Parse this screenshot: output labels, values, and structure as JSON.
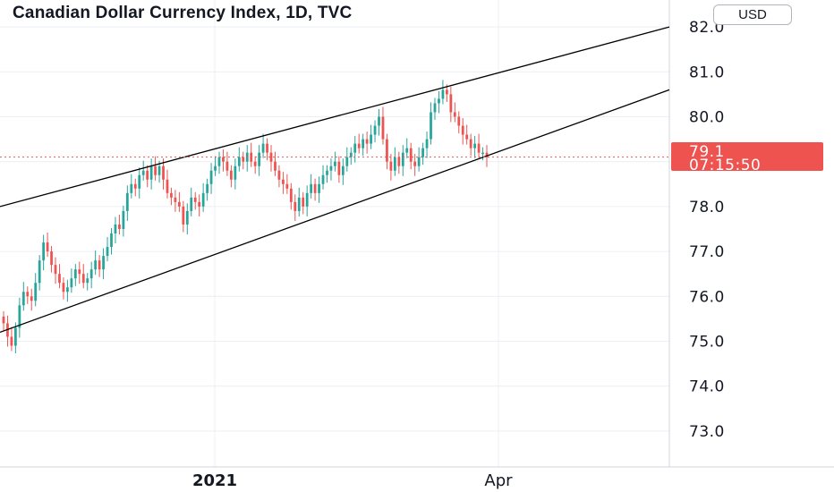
{
  "header": {
    "title": "Canadian Dollar Currency Index, 1D, TVC",
    "currency": "USD"
  },
  "colors": {
    "up": "#26a69a",
    "down": "#ef5350",
    "price_label_bg": "#ef5350",
    "grid": "#eceff3",
    "trendline": "#000000"
  },
  "last_price": {
    "value": "79.1",
    "countdown": "07:15:50"
  },
  "chart_data": {
    "type": "candlestick",
    "title": "Canadian Dollar Currency Index, 1D, TVC",
    "y_ticks": [
      "73.0",
      "74.0",
      "75.0",
      "76.0",
      "77.0",
      "78.0",
      "79.0",
      "80.0",
      "81.0",
      "82.0"
    ],
    "x_ticks": [
      {
        "label": "2021",
        "bold": true
      },
      {
        "label": "Apr",
        "bold": false
      }
    ],
    "ylim": [
      72.2,
      82.6
    ],
    "grid": true,
    "last_price_line": 79.1,
    "close": [
      75.4,
      75.1,
      74.9,
      75.3,
      75.8,
      76.1,
      76.0,
      75.9,
      76.3,
      76.8,
      77.2,
      77.0,
      76.7,
      76.5,
      76.3,
      76.1,
      76.2,
      76.4,
      76.6,
      76.5,
      76.3,
      76.4,
      76.6,
      76.8,
      76.6,
      76.9,
      77.1,
      77.4,
      77.6,
      77.5,
      77.9,
      78.3,
      78.5,
      78.4,
      78.7,
      78.8,
      78.6,
      78.9,
      78.7,
      78.9,
      78.6,
      78.3,
      78.2,
      78.1,
      78.0,
      77.6,
      77.9,
      78.2,
      78.1,
      78.0,
      78.3,
      78.5,
      78.8,
      78.9,
      79.1,
      79.0,
      78.8,
      78.6,
      78.9,
      79.1,
      79.0,
      79.2,
      79.0,
      78.9,
      79.2,
      79.4,
      79.2,
      79.0,
      78.8,
      78.6,
      78.5,
      78.4,
      78.1,
      77.9,
      78.2,
      78.0,
      78.3,
      78.5,
      78.3,
      78.5,
      78.7,
      78.8,
      78.9,
      79.0,
      78.7,
      78.9,
      79.1,
      79.2,
      79.4,
      79.3,
      79.5,
      79.4,
      79.6,
      79.8,
      80.0,
      79.5,
      79.0,
      78.8,
      79.1,
      78.9,
      79.2,
      79.3,
      79.0,
      78.9,
      79.1,
      79.3,
      79.5,
      80.1,
      80.3,
      80.4,
      80.6,
      80.5,
      80.1,
      80.0,
      79.8,
      79.6,
      79.5,
      79.3,
      79.4,
      79.2,
      79.2,
      79.1
    ],
    "trendlines": [
      {
        "name": "upper",
        "start": 78.0,
        "end": 82.0
      },
      {
        "name": "lower",
        "start": 75.2,
        "end": 80.6
      }
    ]
  }
}
